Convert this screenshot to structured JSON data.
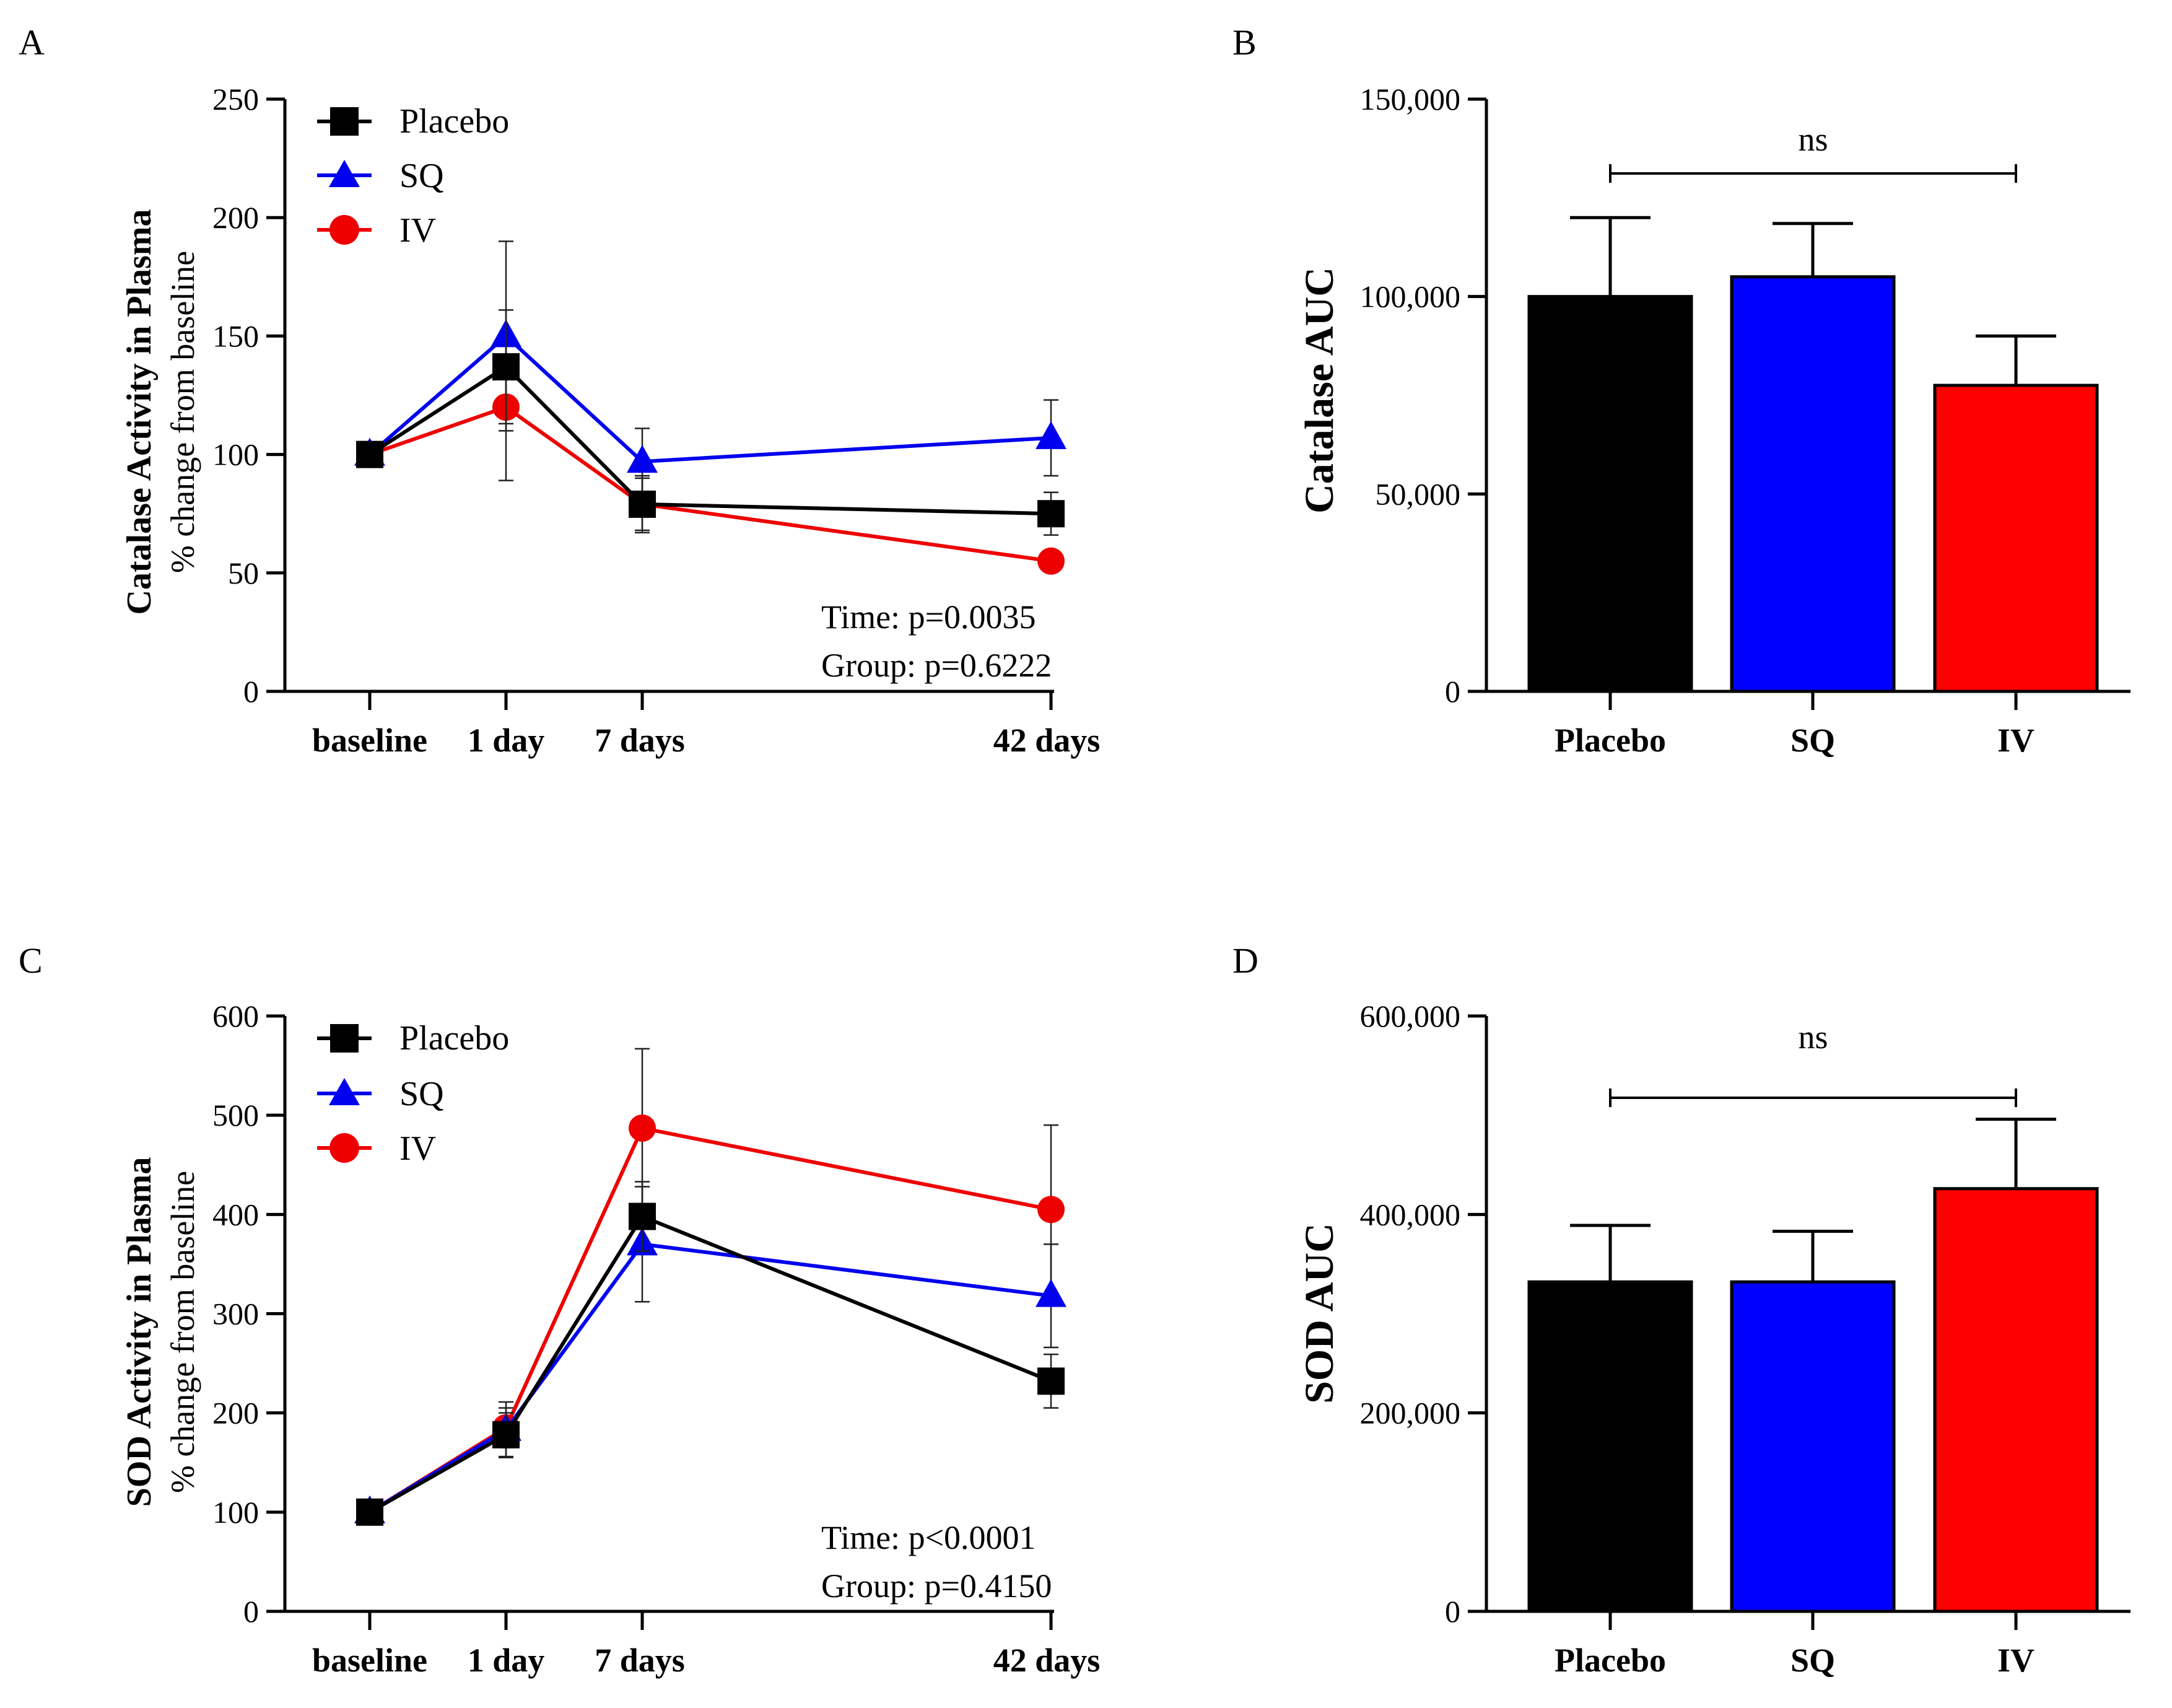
{
  "panels": {
    "A": {
      "letter": "A",
      "chart_data": {
        "type": "line",
        "ylabel_title": "Catalase Activity in Plasma",
        "ylabel_sub": "% change from baseline",
        "categories": [
          "baseline",
          "1 day",
          "7 days",
          "42 days"
        ],
        "x": [
          0,
          1,
          2,
          5
        ],
        "ylim": [
          0,
          250
        ],
        "yticks": [
          0,
          50,
          100,
          150,
          200,
          250
        ],
        "ytick_labels": [
          "0",
          "50",
          "100",
          "150",
          "200",
          "250"
        ],
        "series": [
          {
            "name": "Placebo",
            "color": "#000000",
            "marker": "square",
            "values": [
              100,
              137,
              79,
              75
            ],
            "err": [
              0,
              24,
              12,
              9
            ]
          },
          {
            "name": "SQ",
            "color": "#0000ee",
            "marker": "triangle",
            "values": [
              100,
              150,
              97,
              107
            ],
            "err": [
              0,
              40,
              14,
              16
            ]
          },
          {
            "name": "IV",
            "color": "#ee0000",
            "marker": "circle",
            "values": [
              100,
              120,
              79,
              55
            ],
            "err": [
              0,
              31,
              11,
              0
            ]
          }
        ],
        "annotations": [
          "Time: p=0.0035",
          "Group: p=0.6222"
        ]
      }
    },
    "B": {
      "letter": "B",
      "chart_data": {
        "type": "bar",
        "ylabel": "Catalase AUC",
        "categories": [
          "Placebo",
          "SQ",
          "IV"
        ],
        "values": [
          100000,
          105000,
          77500
        ],
        "err": [
          20000,
          13500,
          12500
        ],
        "colors": [
          "#000000",
          "#0000ff",
          "#ff0000"
        ],
        "ylim": [
          0,
          150000
        ],
        "yticks": [
          0,
          50000,
          100000,
          150000
        ],
        "ytick_labels": [
          "0",
          "50,000",
          "100,000",
          "150,000"
        ],
        "significance": {
          "label": "ns",
          "from": 0,
          "to": 2
        }
      }
    },
    "C": {
      "letter": "C",
      "chart_data": {
        "type": "line",
        "ylabel_title": "SOD Activity in Plasma",
        "ylabel_sub": "% change from baseline",
        "categories": [
          "baseline",
          "1 day",
          "7 days",
          "42 days"
        ],
        "x": [
          0,
          1,
          2,
          5
        ],
        "ylim": [
          0,
          600
        ],
        "yticks": [
          0,
          100,
          200,
          300,
          400,
          500,
          600
        ],
        "ytick_labels": [
          "0",
          "100",
          "200",
          "300",
          "400",
          "500",
          "600"
        ],
        "series": [
          {
            "name": "Placebo",
            "color": "#000000",
            "marker": "square",
            "values": [
              100,
              178,
              398,
              232
            ],
            "err": [
              0,
              22,
              35,
              27
            ]
          },
          {
            "name": "SQ",
            "color": "#0000ee",
            "marker": "triangle",
            "values": [
              100,
              183,
              370,
              318
            ],
            "err": [
              0,
              28,
              58,
              52
            ]
          },
          {
            "name": "IV",
            "color": "#ee0000",
            "marker": "circle",
            "values": [
              100,
              185,
              487,
              405
            ],
            "err": [
              0,
              20,
              80,
              85
            ]
          }
        ],
        "annotations": [
          "Time: p<0.0001",
          "Group: p=0.4150"
        ]
      }
    },
    "D": {
      "letter": "D",
      "chart_data": {
        "type": "bar",
        "ylabel": "SOD AUC",
        "categories": [
          "Placebo",
          "SQ",
          "IV"
        ],
        "values": [
          332000,
          332000,
          426000
        ],
        "err": [
          57000,
          51000,
          70000
        ],
        "colors": [
          "#000000",
          "#0000ff",
          "#ff0000"
        ],
        "ylim": [
          0,
          600000
        ],
        "yticks": [
          0,
          200000,
          400000,
          600000
        ],
        "ytick_labels": [
          "0",
          "200,000",
          "400,000",
          "600,000"
        ],
        "significance": {
          "label": "ns",
          "from": 0,
          "to": 2
        }
      }
    }
  }
}
